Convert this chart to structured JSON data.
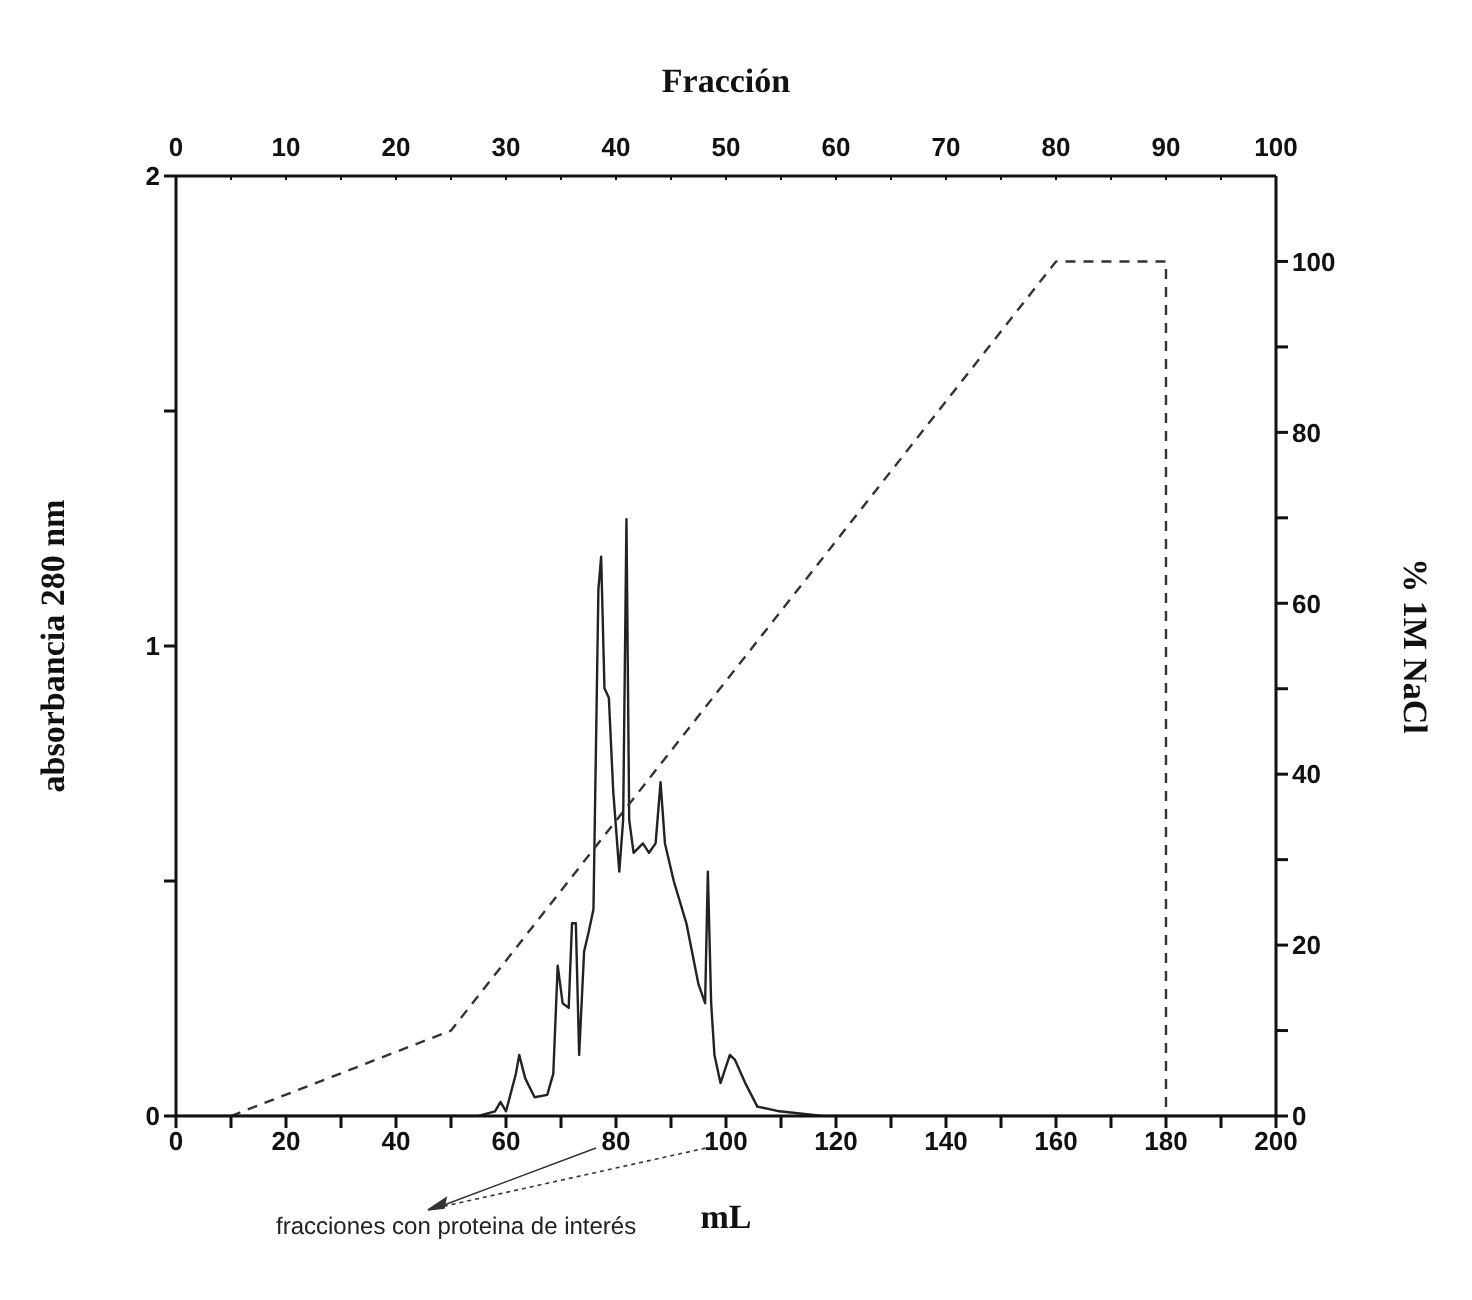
{
  "chart_data": {
    "type": "line",
    "xlabel": "mL",
    "ylabel": "absorbancia 280 nm",
    "y2label": "% 1M NaCl",
    "x2label": "Fracción",
    "annotations": [
      "fracciones con proteina de interés"
    ],
    "xlim": [
      0,
      200
    ],
    "xticks": [
      0,
      {
        "value": 10,
        "label": null
      },
      20,
      {
        "value": 30,
        "label": null
      },
      40,
      {
        "value": 50,
        "label": null
      },
      60,
      {
        "value": 70,
        "label": null
      },
      80,
      {
        "value": 90,
        "label": null
      },
      100,
      {
        "value": 110,
        "label": null
      },
      120,
      {
        "value": 130,
        "label": null
      },
      140,
      {
        "value": 150,
        "label": null
      },
      160,
      {
        "value": 170,
        "label": null
      },
      180,
      {
        "value": 190,
        "label": null
      },
      200
    ],
    "x2lim": [
      0,
      100
    ],
    "x2ticks": [
      0,
      {
        "value": 5,
        "label": null
      },
      10,
      {
        "value": 15,
        "label": null
      },
      20,
      {
        "value": 25,
        "label": null
      },
      30,
      {
        "value": 35,
        "label": null
      },
      40,
      {
        "value": 45,
        "label": null
      },
      50,
      {
        "value": 55,
        "label": null
      },
      60,
      {
        "value": 65,
        "label": null
      },
      70,
      {
        "value": 75,
        "label": null
      },
      80,
      {
        "value": 85,
        "label": null
      },
      90,
      {
        "value": 95,
        "label": null
      },
      100
    ],
    "ylim": [
      0,
      2
    ],
    "yticks": [
      0,
      {
        "value": 0.5,
        "label": null
      },
      1,
      {
        "value": 1.5,
        "label": null
      },
      2
    ],
    "y2lim": [
      0,
      110
    ],
    "y2ticks": [
      0,
      {
        "value": 10,
        "label": null
      },
      20,
      {
        "value": 30,
        "label": null
      },
      40,
      {
        "value": 50,
        "label": null
      },
      60,
      {
        "value": 70,
        "label": null
      },
      80,
      {
        "value": 90,
        "label": null
      },
      100
    ],
    "marker": "none",
    "series": [
      {
        "color": "#222222",
        "line_style": "solid",
        "x": [
          0,
          55,
          58,
          59,
          60,
          61.8,
          62.4,
          63.5,
          65.2,
          67.5,
          68.6,
          69.4,
          70.3,
          71.4,
          72,
          72.7,
          73.3,
          74.2,
          75,
          75.9,
          76.8,
          77.3,
          77.9,
          78.7,
          79.5,
          80.6,
          81.3,
          81.9,
          82.4,
          83.2,
          84.9,
          86,
          87.2,
          88.1,
          88.9,
          90.5,
          92.8,
          95,
          96.2,
          96.7,
          97.3,
          97.9,
          99,
          100.7,
          101.6,
          103.5,
          105.7,
          109.7,
          117.6,
          121,
          200
        ],
        "values": [
          0,
          0,
          0.01,
          0.03,
          0.01,
          0.09,
          0.13,
          0.08,
          0.04,
          0.045,
          0.09,
          0.32,
          0.24,
          0.23,
          0.41,
          0.41,
          0.13,
          0.35,
          0.39,
          0.44,
          1.12,
          1.19,
          0.91,
          0.89,
          0.69,
          0.52,
          0.63,
          1.27,
          0.63,
          0.56,
          0.58,
          0.56,
          0.58,
          0.71,
          0.58,
          0.5,
          0.41,
          0.28,
          0.24,
          0.52,
          0.24,
          0.13,
          0.07,
          0.13,
          0.12,
          0.07,
          0.02,
          0.01,
          0,
          0,
          0
        ]
      },
      {
        "color": "#333333",
        "line_style": "dashed",
        "axis": "y2",
        "x": [
          10,
          50,
          160,
          180,
          180
        ],
        "values": [
          0,
          10,
          100,
          100,
          0
        ]
      }
    ]
  }
}
